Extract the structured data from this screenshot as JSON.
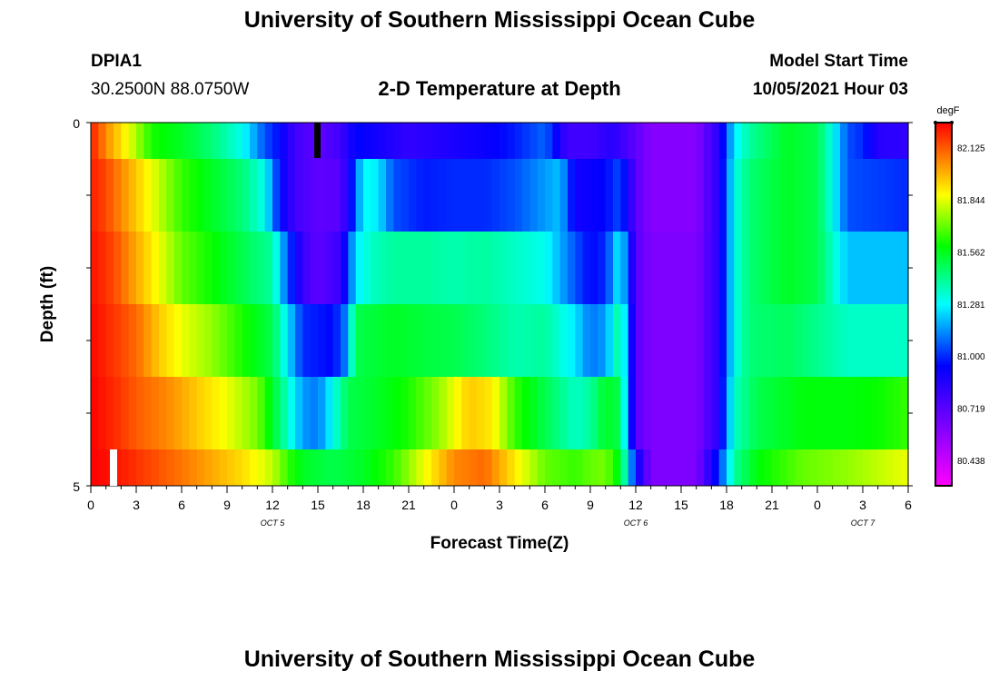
{
  "header": {
    "title_top": "University of Southern Mississippi Ocean Cube",
    "station_id": "DPIA1",
    "station_coords": "30.2500N  88.0750W",
    "plot_title": "2-D Temperature at Depth",
    "model_start_label": "Model Start Time",
    "model_start_value": "10/05/2021 Hour 03"
  },
  "footer": {
    "title_bottom": "University of Southern Mississippi Ocean Cube"
  },
  "chart_data": {
    "type": "heatmap",
    "title": "2-D Temperature at Depth",
    "xlabel": "Forecast Time(Z)",
    "ylabel": "Depth (ft)",
    "colorbar_unit": "degF",
    "colorbar_ticks": [
      "82.125",
      "81.844",
      "81.562",
      "81.281",
      "81.000",
      "80.719",
      "80.438"
    ],
    "color_range": [
      80.3,
      82.26
    ],
    "x_tick_labels": [
      "0",
      "3",
      "6",
      "9",
      "12",
      "15",
      "18",
      "21",
      "0",
      "3",
      "6",
      "9",
      "12",
      "15",
      "18",
      "21",
      "0",
      "3",
      "6"
    ],
    "date_labels": [
      {
        "label": "OCT 5",
        "hour": 12
      },
      {
        "label": "OCT 6",
        "hour": 36
      },
      {
        "label": "OCT 7",
        "hour": 51
      }
    ],
    "x_range_hours": [
      0,
      54
    ],
    "y_range_ft": [
      0,
      5
    ],
    "y_tick_labels": [
      "0",
      "5"
    ],
    "depth_rows": [
      {
        "depth_range": "0-0.5",
        "keypoints": [
          [
            0,
            82.22
          ],
          [
            1,
            82.05
          ],
          [
            2.5,
            81.85
          ],
          [
            4,
            81.62
          ],
          [
            6,
            81.55
          ],
          [
            8,
            81.45
          ],
          [
            10,
            81.3
          ],
          [
            11.5,
            81.05
          ],
          [
            12.5,
            80.95
          ],
          [
            13.5,
            80.78
          ],
          [
            15,
            80.7
          ],
          [
            16.5,
            80.78
          ],
          [
            17.5,
            80.95
          ],
          [
            19,
            80.9
          ],
          [
            21,
            80.82
          ],
          [
            24,
            80.88
          ],
          [
            26,
            80.92
          ],
          [
            28,
            80.98
          ],
          [
            30,
            81.08
          ],
          [
            31.5,
            80.78
          ],
          [
            33,
            80.78
          ],
          [
            34.5,
            80.85
          ],
          [
            36,
            80.7
          ],
          [
            37,
            80.6
          ],
          [
            40,
            80.6
          ],
          [
            41.5,
            80.85
          ],
          [
            42.5,
            81.25
          ],
          [
            43.5,
            81.4
          ],
          [
            46,
            81.55
          ],
          [
            48,
            81.5
          ],
          [
            49,
            81.3
          ],
          [
            50,
            81.05
          ],
          [
            51,
            81.0
          ],
          [
            52,
            80.85
          ],
          [
            54,
            80.82
          ]
        ]
      },
      {
        "depth_range": "0.5-1.5",
        "keypoints": [
          [
            0,
            82.22
          ],
          [
            1,
            82.15
          ],
          [
            3,
            81.95
          ],
          [
            4.5,
            81.8
          ],
          [
            6,
            81.65
          ],
          [
            8,
            81.55
          ],
          [
            10,
            81.45
          ],
          [
            11.5,
            81.3
          ],
          [
            12.5,
            80.95
          ],
          [
            13.5,
            80.78
          ],
          [
            15,
            80.7
          ],
          [
            16.5,
            80.72
          ],
          [
            17.5,
            81.05
          ],
          [
            18,
            81.3
          ],
          [
            19,
            81.25
          ],
          [
            20,
            81.05
          ],
          [
            22,
            80.98
          ],
          [
            24,
            81.0
          ],
          [
            26,
            81.0
          ],
          [
            28,
            81.05
          ],
          [
            31,
            81.2
          ],
          [
            32,
            80.9
          ],
          [
            34,
            80.95
          ],
          [
            35,
            81.05
          ],
          [
            36,
            80.72
          ],
          [
            37,
            80.6
          ],
          [
            40,
            80.6
          ],
          [
            41.5,
            80.85
          ],
          [
            42.5,
            81.3
          ],
          [
            43.5,
            81.45
          ],
          [
            46,
            81.55
          ],
          [
            48,
            81.5
          ],
          [
            49,
            81.3
          ],
          [
            50,
            81.05
          ],
          [
            54,
            81.0
          ]
        ]
      },
      {
        "depth_range": "1.5-2.5",
        "keypoints": [
          [
            0,
            82.24
          ],
          [
            1.5,
            82.15
          ],
          [
            3,
            82.0
          ],
          [
            4.5,
            81.85
          ],
          [
            6,
            81.7
          ],
          [
            8,
            81.6
          ],
          [
            10,
            81.5
          ],
          [
            12,
            81.4
          ],
          [
            13,
            81.05
          ],
          [
            14,
            80.8
          ],
          [
            15,
            80.7
          ],
          [
            16.5,
            80.8
          ],
          [
            17.5,
            81.25
          ],
          [
            18.5,
            81.35
          ],
          [
            20,
            81.4
          ],
          [
            22,
            81.4
          ],
          [
            24,
            81.38
          ],
          [
            26,
            81.4
          ],
          [
            28,
            81.35
          ],
          [
            30,
            81.3
          ],
          [
            32,
            81.05
          ],
          [
            33,
            80.95
          ],
          [
            34,
            81.0
          ],
          [
            35,
            81.3
          ],
          [
            36,
            80.72
          ],
          [
            37,
            80.62
          ],
          [
            40,
            80.62
          ],
          [
            41.5,
            80.85
          ],
          [
            42.5,
            81.3
          ],
          [
            43.5,
            81.45
          ],
          [
            46,
            81.55
          ],
          [
            48,
            81.5
          ],
          [
            49,
            81.35
          ],
          [
            50,
            81.2
          ],
          [
            54,
            81.2
          ]
        ]
      },
      {
        "depth_range": "2.5-3.5",
        "keypoints": [
          [
            0,
            82.25
          ],
          [
            1.5,
            82.18
          ],
          [
            3,
            82.1
          ],
          [
            4.5,
            81.95
          ],
          [
            6,
            81.85
          ],
          [
            8,
            81.75
          ],
          [
            10,
            81.62
          ],
          [
            12,
            81.5
          ],
          [
            13,
            81.25
          ],
          [
            14,
            81.0
          ],
          [
            16,
            80.95
          ],
          [
            16.8,
            81.1
          ],
          [
            17.5,
            81.5
          ],
          [
            20,
            81.55
          ],
          [
            22,
            81.52
          ],
          [
            24,
            81.5
          ],
          [
            26,
            81.45
          ],
          [
            28,
            81.38
          ],
          [
            30,
            81.4
          ],
          [
            32,
            81.25
          ],
          [
            33,
            81.1
          ],
          [
            34,
            81.15
          ],
          [
            35,
            81.45
          ],
          [
            36,
            80.72
          ],
          [
            37,
            80.62
          ],
          [
            40,
            80.62
          ],
          [
            41.5,
            80.85
          ],
          [
            42.5,
            81.3
          ],
          [
            43.5,
            81.45
          ],
          [
            46,
            81.48
          ],
          [
            48,
            81.42
          ],
          [
            50,
            81.35
          ],
          [
            54,
            81.35
          ]
        ]
      },
      {
        "depth_range": "3.5-4.5",
        "keypoints": [
          [
            0,
            82.26
          ],
          [
            1.5,
            82.2
          ],
          [
            3,
            82.12
          ],
          [
            5,
            82.05
          ],
          [
            7,
            81.95
          ],
          [
            9,
            81.85
          ],
          [
            11,
            81.72
          ],
          [
            12,
            81.55
          ],
          [
            13,
            81.35
          ],
          [
            14,
            81.15
          ],
          [
            15,
            81.1
          ],
          [
            16,
            81.3
          ],
          [
            17,
            81.5
          ],
          [
            19,
            81.55
          ],
          [
            21,
            81.62
          ],
          [
            23,
            81.75
          ],
          [
            25,
            81.95
          ],
          [
            26.5,
            81.9
          ],
          [
            28,
            81.65
          ],
          [
            30,
            81.5
          ],
          [
            32,
            81.35
          ],
          [
            33,
            81.4
          ],
          [
            34,
            81.55
          ],
          [
            35,
            81.5
          ],
          [
            36,
            80.72
          ],
          [
            37,
            80.62
          ],
          [
            40,
            80.62
          ],
          [
            41.5,
            80.85
          ],
          [
            42.5,
            81.35
          ],
          [
            44,
            81.5
          ],
          [
            47,
            81.58
          ],
          [
            50,
            81.58
          ],
          [
            52,
            81.6
          ],
          [
            54,
            81.65
          ]
        ]
      },
      {
        "depth_range": "4.5-5",
        "keypoints": [
          [
            0,
            82.26
          ],
          [
            2,
            82.22
          ],
          [
            4,
            82.15
          ],
          [
            6,
            82.08
          ],
          [
            8,
            82.0
          ],
          [
            10,
            81.92
          ],
          [
            12,
            81.8
          ],
          [
            13,
            81.65
          ],
          [
            14,
            81.55
          ],
          [
            16,
            81.5
          ],
          [
            18,
            81.55
          ],
          [
            20,
            81.65
          ],
          [
            22,
            81.85
          ],
          [
            24,
            82.05
          ],
          [
            26,
            82.1
          ],
          [
            28,
            81.9
          ],
          [
            30,
            81.7
          ],
          [
            32,
            81.65
          ],
          [
            33,
            81.7
          ],
          [
            34,
            81.72
          ],
          [
            35,
            81.55
          ],
          [
            36,
            80.95
          ],
          [
            37,
            80.62
          ],
          [
            40,
            80.62
          ],
          [
            41.5,
            81.0
          ],
          [
            42.5,
            81.4
          ],
          [
            44,
            81.58
          ],
          [
            47,
            81.7
          ],
          [
            50,
            81.75
          ],
          [
            52,
            81.8
          ],
          [
            54,
            81.85
          ]
        ]
      }
    ]
  }
}
